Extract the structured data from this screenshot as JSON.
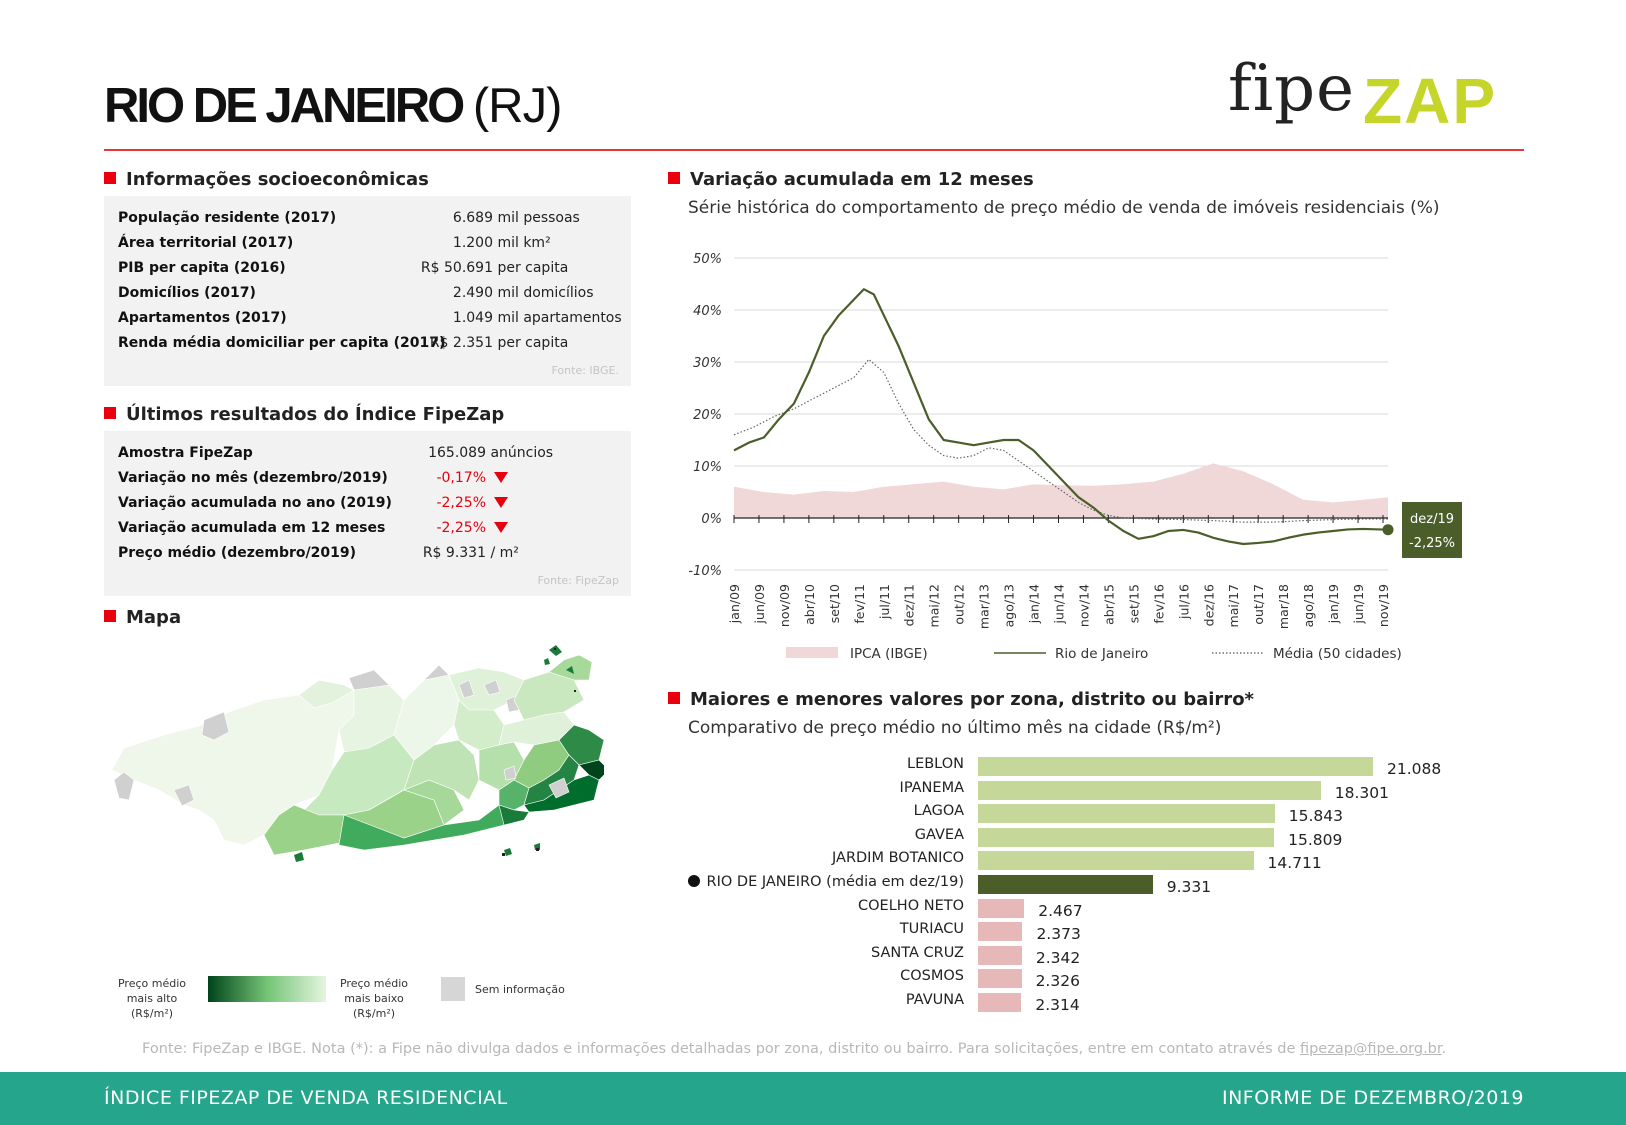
{
  "header": {
    "city": "RIO DE JANEIRO",
    "state": "(RJ)",
    "logo_fipe": "fipe",
    "logo_zap": "ZAP"
  },
  "socio": {
    "title": "Informações socioeconômicas",
    "rows": [
      {
        "label": "População residente (2017)",
        "value": "6.689",
        "unit": "mil pessoas"
      },
      {
        "label": "Área territorial (2017)",
        "value": "1.200",
        "unit": "mil km²"
      },
      {
        "label": "PIB per capita (2016)",
        "value": "R$ 50.691",
        "unit": "per capita"
      },
      {
        "label": "Domicílios (2017)",
        "value": "2.490",
        "unit": "mil domicílios"
      },
      {
        "label": "Apartamentos (2017)",
        "value": "1.049",
        "unit": "mil apartamentos"
      },
      {
        "label": "Renda média domiciliar per capita (2017)",
        "value": "R$ 2.351",
        "unit": "per capita"
      }
    ],
    "source": "Fonte: IBGE."
  },
  "results": {
    "title": "Últimos resultados do Índice FipeZap",
    "rows": [
      {
        "label": "Amostra FipeZap",
        "value": "165.089",
        "unit": "anúncios"
      },
      {
        "label": "Variação no mês (dezembro/2019)",
        "value": "-0,17%",
        "unit": ""
      },
      {
        "label": "Variação acumulada no ano (2019)",
        "value": "-2,25%",
        "unit": ""
      },
      {
        "label": "Variação acumulada em 12 meses",
        "value": "-2,25%",
        "unit": ""
      },
      {
        "label": "Preço médio (dezembro/2019)",
        "value": "R$ 9.331",
        "unit": "/ m²"
      }
    ],
    "source": "Fonte: FipeZap"
  },
  "map": {
    "title": "Mapa",
    "legend_high": "Preço médio mais alto (R$/m²)",
    "legend_low": "Preço médio mais baixo (R$/m²)",
    "legend_none": "Sem informação",
    "colors": {
      "dark": "#00441b",
      "mid": "#41ab5d",
      "light": "#a1d99b",
      "pale": "#e5f5e0",
      "none": "#d0d0d0"
    }
  },
  "line_section": {
    "title": "Variação acumulada em 12 meses",
    "subtitle": "Série histórica do comportamento de preço médio de venda de imóveis residenciais (%)"
  },
  "bar_section": {
    "title": "Maiores e menores valores por zona, distrito ou bairro*",
    "subtitle": "Comparativo de preço médio no último mês na cidade (R$/m²)"
  },
  "chart_data": [
    {
      "type": "line",
      "title": "Variação acumulada em 12 meses",
      "ylabel": "%",
      "ylim": [
        -10,
        50
      ],
      "yticks": [
        -10,
        0,
        10,
        20,
        30,
        40,
        50
      ],
      "ytick_labels": [
        "-10%",
        "0%",
        "10%",
        "20%",
        "30%",
        "40%",
        "50%"
      ],
      "xtick_labels": [
        "jan/09",
        "jun/09",
        "nov/09",
        "abr/10",
        "set/10",
        "fev/11",
        "jul/11",
        "dez/11",
        "mai/12",
        "out/12",
        "mar/13",
        "ago/13",
        "jan/14",
        "jun/14",
        "nov/14",
        "abr/15",
        "set/15",
        "fev/16",
        "jul/16",
        "dez/16",
        "mai/17",
        "out/17",
        "mar/18",
        "ago/18",
        "jan/19",
        "jun/19",
        "nov/19"
      ],
      "x_start": "jan/09",
      "n_months": 132,
      "series": [
        {
          "name": "IPCA (IBGE)",
          "kind": "area",
          "color": "#f0d8d8",
          "points": [
            [
              0,
              6
            ],
            [
              6,
              5
            ],
            [
              12,
              4.5
            ],
            [
              18,
              5.2
            ],
            [
              24,
              5.0
            ],
            [
              30,
              6.0
            ],
            [
              36,
              6.5
            ],
            [
              42,
              7.0
            ],
            [
              48,
              6.0
            ],
            [
              54,
              5.5
            ],
            [
              60,
              6.5
            ],
            [
              66,
              6.3
            ],
            [
              72,
              6.2
            ],
            [
              78,
              6.5
            ],
            [
              84,
              7.0
            ],
            [
              90,
              8.5
            ],
            [
              96,
              10.5
            ],
            [
              102,
              9.0
            ],
            [
              108,
              6.5
            ],
            [
              114,
              3.5
            ],
            [
              120,
              3.0
            ],
            [
              126,
              3.5
            ],
            [
              131,
              4.0
            ]
          ]
        },
        {
          "name": "Rio de Janeiro",
          "kind": "line",
          "color": "#4b5e2a",
          "points": [
            [
              0,
              13
            ],
            [
              3,
              14.5
            ],
            [
              6,
              15.5
            ],
            [
              9,
              19
            ],
            [
              12,
              22
            ],
            [
              15,
              28
            ],
            [
              18,
              35
            ],
            [
              21,
              39
            ],
            [
              24,
              42
            ],
            [
              26,
              44
            ],
            [
              28,
              43
            ],
            [
              30,
              39
            ],
            [
              33,
              33
            ],
            [
              36,
              26
            ],
            [
              39,
              19
            ],
            [
              42,
              15
            ],
            [
              45,
              14.5
            ],
            [
              48,
              14
            ],
            [
              51,
              14.5
            ],
            [
              54,
              15
            ],
            [
              57,
              15
            ],
            [
              60,
              13
            ],
            [
              63,
              10
            ],
            [
              66,
              7
            ],
            [
              69,
              4
            ],
            [
              72,
              2
            ],
            [
              75,
              -0.5
            ],
            [
              78,
              -2.5
            ],
            [
              81,
              -4
            ],
            [
              84,
              -3.5
            ],
            [
              87,
              -2.5
            ],
            [
              90,
              -2.3
            ],
            [
              93,
              -2.8
            ],
            [
              96,
              -3.8
            ],
            [
              99,
              -4.5
            ],
            [
              102,
              -5
            ],
            [
              105,
              -4.8
            ],
            [
              108,
              -4.5
            ],
            [
              111,
              -3.8
            ],
            [
              114,
              -3.2
            ],
            [
              117,
              -2.8
            ],
            [
              120,
              -2.5
            ],
            [
              123,
              -2.2
            ],
            [
              126,
              -2.1
            ],
            [
              131,
              -2.25
            ]
          ]
        },
        {
          "name": "Média (50 cidades)",
          "kind": "dotted",
          "color": "#666666",
          "points": [
            [
              0,
              16
            ],
            [
              4,
              17.5
            ],
            [
              8,
              19.5
            ],
            [
              12,
              21
            ],
            [
              16,
              23
            ],
            [
              20,
              25
            ],
            [
              24,
              27
            ],
            [
              27,
              30.5
            ],
            [
              30,
              28
            ],
            [
              33,
              22
            ],
            [
              36,
              17
            ],
            [
              39,
              14
            ],
            [
              42,
              12
            ],
            [
              45,
              11.5
            ],
            [
              48,
              12
            ],
            [
              51,
              13.5
            ],
            [
              54,
              13
            ],
            [
              57,
              11
            ],
            [
              60,
              9
            ],
            [
              63,
              7
            ],
            [
              66,
              5
            ],
            [
              69,
              3
            ],
            [
              72,
              1.5
            ],
            [
              75,
              0.5
            ],
            [
              78,
              0
            ],
            [
              84,
              -0.2
            ],
            [
              90,
              -0.3
            ],
            [
              96,
              -0.5
            ],
            [
              102,
              -0.8
            ],
            [
              108,
              -0.8
            ],
            [
              114,
              -0.5
            ],
            [
              120,
              -0.3
            ],
            [
              126,
              -0.2
            ],
            [
              131,
              -0.2
            ]
          ]
        }
      ],
      "legend": [
        "IPCA (IBGE)",
        "Rio de Janeiro",
        "Média (50 cidades)"
      ],
      "end_annotation": {
        "label": "dez/19",
        "value": "-2,25%",
        "y": -2.25
      }
    },
    {
      "type": "bar",
      "title": "Maiores e menores valores por zona, distrito ou bairro*",
      "categories": [
        "LEBLON",
        "IPANEMA",
        "LAGOA",
        "GAVEA",
        "JARDIM BOTANICO",
        "RIO DE JANEIRO (média em dez/19)",
        "COELHO NETO",
        "TURIACU",
        "SANTA CRUZ",
        "COSMOS",
        "PAVUNA"
      ],
      "values": [
        21088,
        18301,
        15843,
        15809,
        14711,
        9331,
        2467,
        2373,
        2342,
        2326,
        2314
      ],
      "value_labels": [
        "21.088",
        "18.301",
        "15.843",
        "15.809",
        "14.711",
        "9.331",
        "2.467",
        "2.373",
        "2.342",
        "2.326",
        "2.314"
      ],
      "groups": [
        "high",
        "high",
        "high",
        "high",
        "high",
        "city",
        "low",
        "low",
        "low",
        "low",
        "low"
      ],
      "colors": {
        "high": "#c5d89a",
        "city": "#4b5e2a",
        "low": "#e7b8b8"
      },
      "xlim": [
        0,
        21088
      ]
    }
  ],
  "footer": {
    "note": "Fonte: FipeZap e IBGE. Nota (*): a Fipe não divulga dados e informações detalhadas por zona, distrito ou bairro. Para solicitações, entre em contato através de",
    "email": "fipezap@fipe.org.br",
    "left": "ÍNDICE FIPEZAP DE VENDA RESIDENCIAL",
    "right": "INFORME DE DEZEMBRO/2019"
  }
}
